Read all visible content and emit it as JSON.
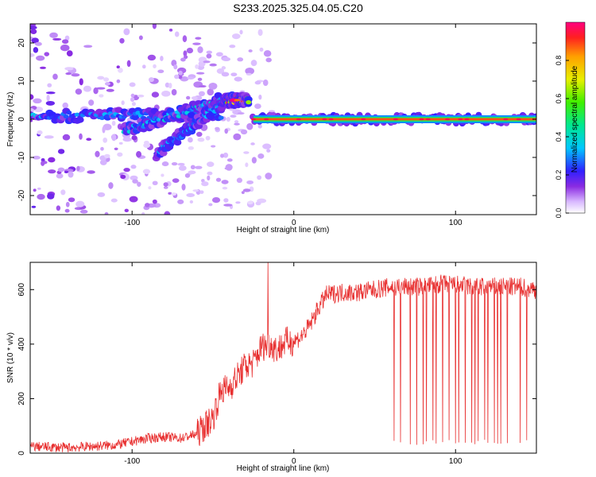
{
  "chart_data": [
    {
      "type": "heatmap",
      "title": "S233.2025.325.04.05.C20",
      "xlabel": "Height of straight line (km)",
      "ylabel": "Frequency (Hz)",
      "xlim": [
        -163,
        150
      ],
      "ylim": [
        -25,
        25
      ],
      "x_ticks": [
        -100,
        0,
        100
      ],
      "y_ticks": [
        -20,
        -10,
        0,
        10,
        20
      ],
      "colorbar": {
        "label": "Normalized spectral amplitude",
        "range": [
          0,
          1
        ],
        "ticks": [
          0.0,
          0.2,
          0.4,
          0.6,
          0.8
        ]
      },
      "features": [
        {
          "name": "main band",
          "x": [
            -163,
            -45
          ],
          "freq_hz": [
            1,
            1
          ],
          "amplitude": 0.3
        },
        {
          "name": "upper branch",
          "x": [
            -105,
            -45
          ],
          "freq_hz": [
            -3,
            5
          ],
          "amplitude": 0.35
        },
        {
          "name": "lower branch",
          "x": [
            -85,
            -42
          ],
          "freq_hz": [
            -9,
            5
          ],
          "amplitude": 0.3
        },
        {
          "name": "peak",
          "x": [
            -42,
            -28
          ],
          "freq_hz": [
            5,
            5
          ],
          "amplitude": 0.9
        },
        {
          "name": "steady carrier",
          "x": [
            -25,
            150
          ],
          "freq_hz": [
            0,
            0
          ],
          "amplitude": 1.0
        }
      ]
    },
    {
      "type": "line",
      "xlabel": "Height of straight line (km)",
      "ylabel": "SNR (10 * v/v)",
      "xlim": [
        -163,
        150
      ],
      "ylim": [
        0,
        700
      ],
      "x_ticks": [
        -100,
        0,
        100
      ],
      "y_ticks": [
        0,
        200,
        400,
        600
      ],
      "series": [
        {
          "name": "SNR",
          "color": "#e83030",
          "x": [
            -163,
            -140,
            -110,
            -90,
            -80,
            -70,
            -60,
            -50,
            -45,
            -40,
            -35,
            -30,
            -25,
            -20,
            -15,
            -10,
            -5,
            0,
            5,
            10,
            15,
            20,
            30,
            40,
            50,
            60,
            70,
            80,
            90,
            100,
            110,
            120,
            130,
            140,
            150
          ],
          "values": [
            25,
            20,
            30,
            55,
            60,
            55,
            70,
            130,
            230,
            240,
            280,
            320,
            330,
            390,
            400,
            380,
            410,
            410,
            430,
            470,
            530,
            580,
            590,
            590,
            600,
            610,
            610,
            610,
            620,
            620,
            610,
            610,
            610,
            610,
            600
          ]
        }
      ],
      "dropouts_x": [
        62,
        66,
        72,
        76,
        80,
        82,
        86,
        88,
        92,
        96,
        100,
        102,
        106,
        110,
        112,
        114,
        118,
        120,
        124,
        126,
        128,
        132,
        140,
        144
      ]
    }
  ]
}
